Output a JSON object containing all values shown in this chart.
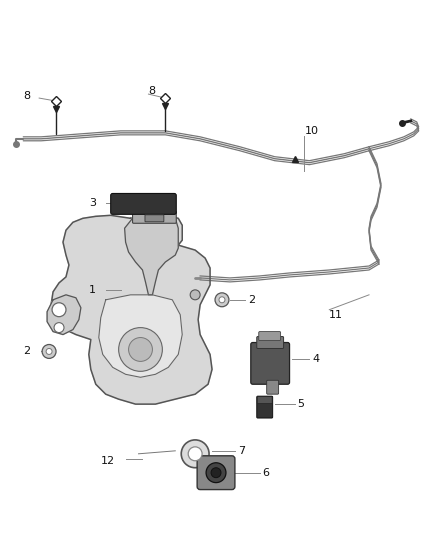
{
  "background_color": "#ffffff",
  "line_color": "#666666",
  "dark_color": "#222222",
  "mid_color": "#888888",
  "label_color": "#111111",
  "figsize": [
    4.38,
    5.33
  ],
  "dpi": 100,
  "hose_color": "#777777",
  "fill_color": "#e0e0e0",
  "dark_fill": "#444444"
}
